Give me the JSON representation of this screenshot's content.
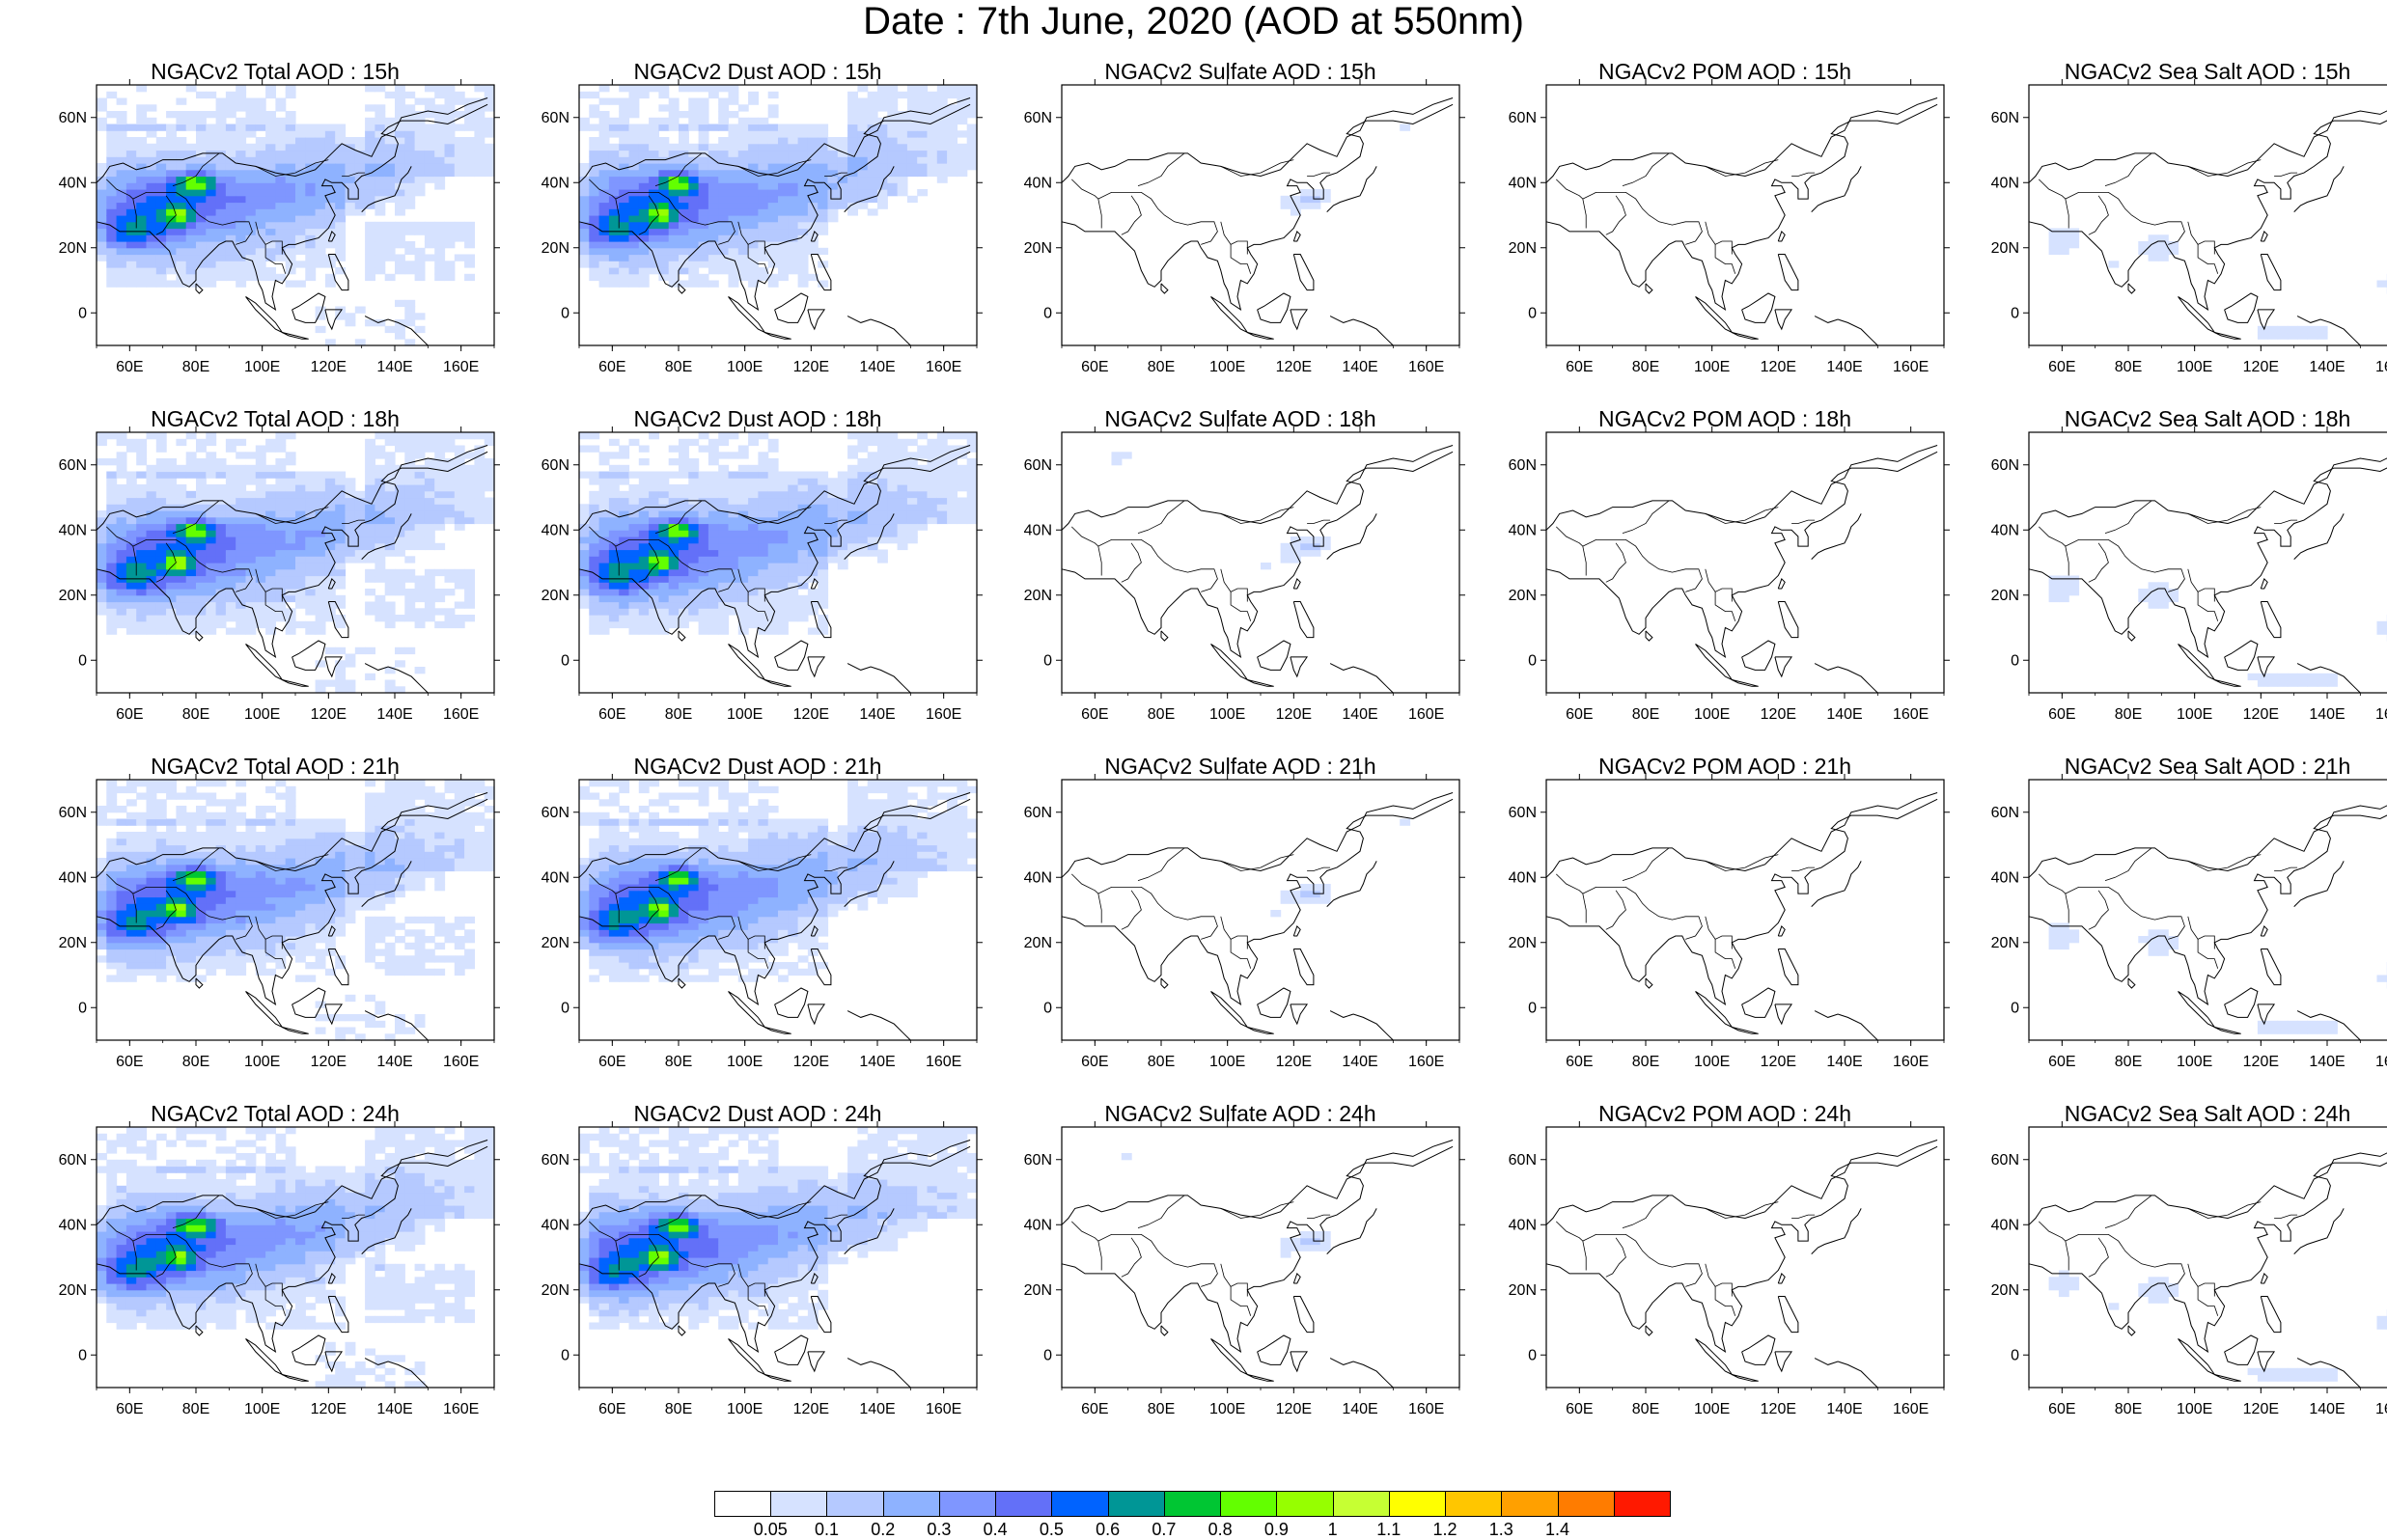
{
  "title": "Date : 7th June, 2020 (AOD at 550nm)",
  "map": {
    "lon_range": [
      50,
      170
    ],
    "lat_range": [
      -10,
      70
    ],
    "lon_ticks": [
      "60E",
      "80E",
      "100E",
      "120E",
      "140E",
      "160E"
    ],
    "lat_ticks": [
      "60N",
      "40N",
      "20N",
      "0"
    ]
  },
  "panels": [
    {
      "title": "NGACv2 Total AOD : 15h",
      "species": "total",
      "hour": "15h"
    },
    {
      "title": "NGACv2 Dust AOD : 15h",
      "species": "dust",
      "hour": "15h"
    },
    {
      "title": "NGACv2 Sulfate AOD : 15h",
      "species": "sulfate",
      "hour": "15h"
    },
    {
      "title": "NGACv2 POM AOD : 15h",
      "species": "pom",
      "hour": "15h"
    },
    {
      "title": "NGACv2 Sea Salt AOD : 15h",
      "species": "seasalt",
      "hour": "15h"
    },
    {
      "title": "NGACv2 Total AOD : 18h",
      "species": "total",
      "hour": "18h"
    },
    {
      "title": "NGACv2 Dust AOD : 18h",
      "species": "dust",
      "hour": "18h"
    },
    {
      "title": "NGACv2 Sulfate AOD : 18h",
      "species": "sulfate",
      "hour": "18h"
    },
    {
      "title": "NGACv2 POM AOD : 18h",
      "species": "pom",
      "hour": "18h"
    },
    {
      "title": "NGACv2 Sea Salt AOD : 18h",
      "species": "seasalt",
      "hour": "18h"
    },
    {
      "title": "NGACv2 Total AOD : 21h",
      "species": "total",
      "hour": "21h"
    },
    {
      "title": "NGACv2 Dust AOD : 21h",
      "species": "dust",
      "hour": "21h"
    },
    {
      "title": "NGACv2 Sulfate AOD : 21h",
      "species": "sulfate",
      "hour": "21h"
    },
    {
      "title": "NGACv2 POM AOD : 21h",
      "species": "pom",
      "hour": "21h"
    },
    {
      "title": "NGACv2 Sea Salt AOD : 21h",
      "species": "seasalt",
      "hour": "21h"
    },
    {
      "title": "NGACv2 Total AOD : 24h",
      "species": "total",
      "hour": "24h"
    },
    {
      "title": "NGACv2 Dust AOD : 24h",
      "species": "dust",
      "hour": "24h"
    },
    {
      "title": "NGACv2 Sulfate AOD : 24h",
      "species": "sulfate",
      "hour": "24h"
    },
    {
      "title": "NGACv2 POM AOD : 24h",
      "species": "pom",
      "hour": "24h"
    },
    {
      "title": "NGACv2 Sea Salt  AOD : 24h",
      "species": "seasalt",
      "hour": "24h"
    }
  ],
  "colorbar": {
    "colors": [
      "#ffffff",
      "#d6e2ff",
      "#b5c9ff",
      "#8eb2ff",
      "#7f96ff",
      "#6370f8",
      "#0063ff",
      "#009696",
      "#00c633",
      "#63ff00",
      "#96ff00",
      "#c6ff33",
      "#ffff00",
      "#ffc600",
      "#ffa000",
      "#ff7c00",
      "#ff1900"
    ],
    "labels": [
      "0.05",
      "0.1",
      "0.2",
      "0.3",
      "0.4",
      "0.5",
      "0.6",
      "0.7",
      "0.8",
      "0.9",
      "1",
      "1.1",
      "1.2",
      "1.3",
      "1.4"
    ]
  }
}
